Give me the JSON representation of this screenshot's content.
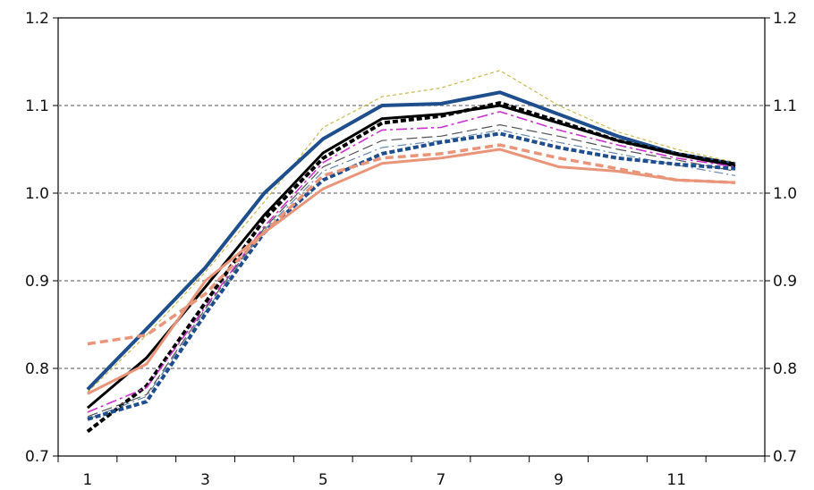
{
  "chart_data": {
    "type": "line",
    "title": "",
    "xlabel": "",
    "ylabel": "",
    "x": [
      1,
      2,
      3,
      4,
      5,
      6,
      7,
      8,
      9,
      10,
      11,
      12
    ],
    "xlim": [
      0.5,
      12.5
    ],
    "ylim": [
      0.7,
      1.2
    ],
    "x_tick_labels": [
      "1",
      "3",
      "5",
      "7",
      "9",
      "11"
    ],
    "x_tick_values": [
      1,
      3,
      5,
      7,
      9,
      11
    ],
    "y_ticks": [
      0.7,
      0.8,
      0.9,
      1.0,
      1.1,
      1.2
    ],
    "y_tick_labels": [
      "0.7",
      "0.8",
      "0.9",
      "1.0",
      "1.1",
      "1.2"
    ],
    "gridlines": [
      0.8,
      0.9,
      1.0,
      1.1
    ],
    "grid": "horizontal-dashed",
    "secondary_y_axis": true,
    "legend": "none",
    "series": [
      {
        "color": "#c8b84a",
        "style": "dashed-thin",
        "values": [
          0.773,
          0.838,
          0.91,
          0.99,
          1.075,
          1.11,
          1.12,
          1.14,
          1.1,
          1.07,
          1.05,
          1.035
        ]
      },
      {
        "color": "#1f4e8c",
        "style": "solid-thick",
        "values": [
          0.776,
          0.845,
          0.915,
          1.0,
          1.062,
          1.1,
          1.102,
          1.115,
          1.09,
          1.065,
          1.045,
          1.033
        ]
      },
      {
        "color": "#000000",
        "style": "solid",
        "values": [
          0.755,
          0.812,
          0.893,
          0.975,
          1.046,
          1.085,
          1.09,
          1.1,
          1.08,
          1.06,
          1.044,
          1.031
        ]
      },
      {
        "color": "#000000",
        "style": "dashed-thick",
        "values": [
          0.728,
          0.78,
          0.875,
          0.97,
          1.04,
          1.08,
          1.088,
          1.103,
          1.082,
          1.06,
          1.045,
          1.033
        ]
      },
      {
        "color": "#cc33cc",
        "style": "dashdot",
        "values": [
          0.75,
          0.778,
          0.87,
          0.962,
          1.035,
          1.072,
          1.075,
          1.093,
          1.072,
          1.055,
          1.04,
          1.03
        ]
      },
      {
        "color": "#555555",
        "style": "dashed-long-thin",
        "values": [
          0.745,
          0.77,
          0.868,
          0.96,
          1.03,
          1.06,
          1.065,
          1.078,
          1.065,
          1.05,
          1.038,
          1.025
        ]
      },
      {
        "color": "#6688aa",
        "style": "dashdot-thin",
        "values": [
          0.742,
          0.768,
          0.865,
          0.958,
          1.025,
          1.052,
          1.06,
          1.072,
          1.058,
          1.045,
          1.032,
          1.02
        ]
      },
      {
        "color": "#1f4e8c",
        "style": "dashed-thick",
        "values": [
          0.742,
          0.762,
          0.862,
          0.955,
          1.015,
          1.045,
          1.058,
          1.068,
          1.052,
          1.04,
          1.033,
          1.028
        ]
      },
      {
        "color": "#e8957a",
        "style": "dashed",
        "values": [
          0.828,
          0.838,
          0.885,
          0.955,
          1.02,
          1.04,
          1.045,
          1.055,
          1.04,
          1.028,
          1.015,
          1.012
        ]
      },
      {
        "color": "#e8957a",
        "style": "solid",
        "values": [
          0.771,
          0.805,
          0.9,
          0.955,
          1.005,
          1.034,
          1.04,
          1.05,
          1.03,
          1.025,
          1.015,
          1.012
        ]
      }
    ]
  }
}
